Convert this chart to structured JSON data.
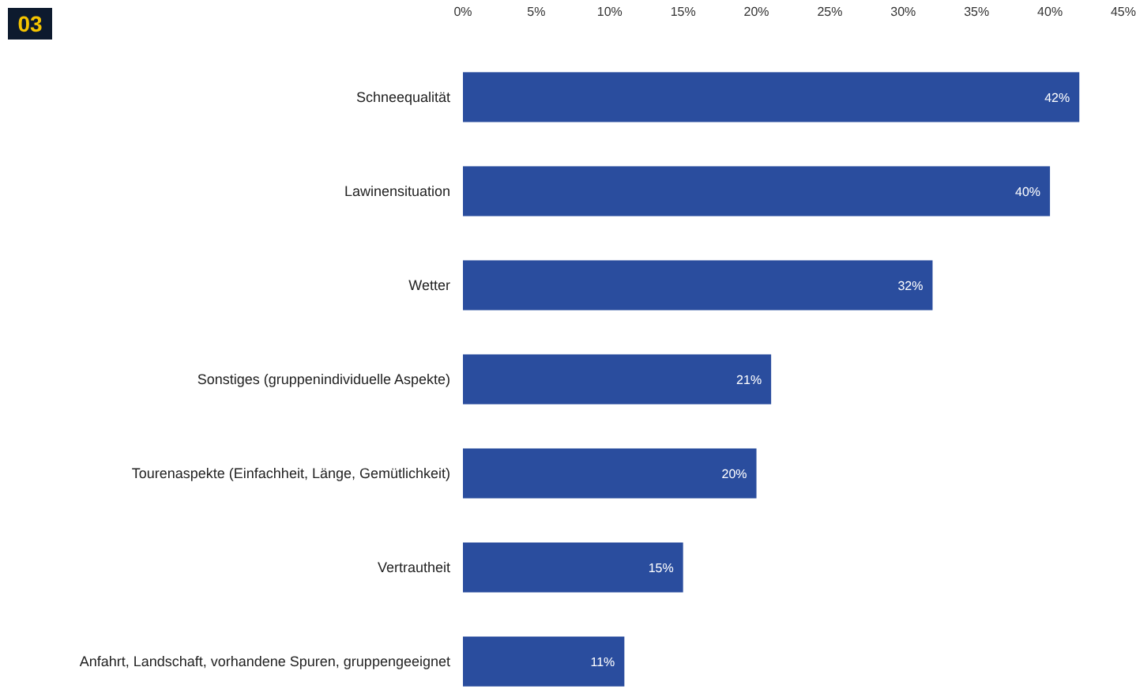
{
  "chart_data": {
    "type": "bar",
    "orientation": "horizontal",
    "categories": [
      "Schneequalität",
      "Lawinensituation",
      "Wetter",
      "Sonstiges (gruppenindividuelle Aspekte)",
      "Tourenaspekte (Einfachheit, Länge, Gemütlichkeit)",
      "Vertrautheit",
      "Anfahrt, Landschaft, vorhandene Spuren, gruppengeeignet"
    ],
    "values": [
      42,
      40,
      32,
      21,
      20,
      15,
      11
    ],
    "value_labels": [
      "42%",
      "40%",
      "32%",
      "21%",
      "20%",
      "15%",
      "11%"
    ],
    "color": "#2a4d9e",
    "xlim": [
      0,
      45
    ],
    "xticks": [
      {
        "value": 0,
        "label": "0%"
      },
      {
        "value": 5,
        "label": "5%"
      },
      {
        "value": 10,
        "label": "10%"
      },
      {
        "value": 15,
        "label": "15%"
      },
      {
        "value": 20,
        "label": "20%"
      },
      {
        "value": 25,
        "label": "25%"
      },
      {
        "value": 30,
        "label": "30%"
      },
      {
        "value": 35,
        "label": "35%"
      },
      {
        "value": 40,
        "label": "40%"
      },
      {
        "value": 45,
        "label": "45%"
      }
    ],
    "annotations": [
      "03"
    ]
  }
}
